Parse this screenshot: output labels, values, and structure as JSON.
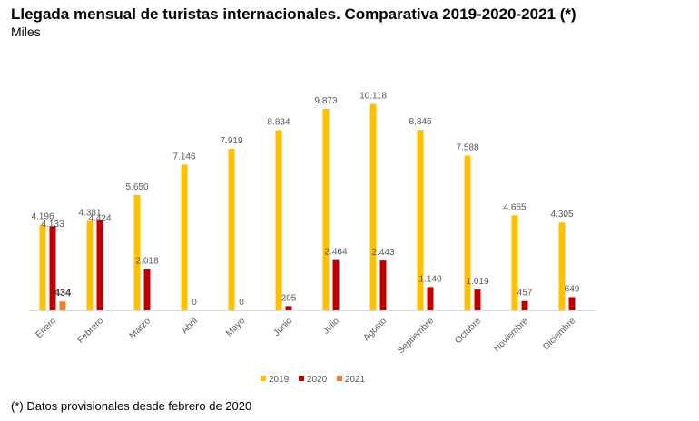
{
  "title": "Llegada mensual de turistas internacionales. Comparativa 2019-2020-2021 (*)",
  "subtitle": "Miles",
  "footnote": "(*) Datos provisionales desde febrero de 2020",
  "chart_data": {
    "type": "bar",
    "title": "Llegada mensual de turistas internacionales. Comparativa 2019-2020-2021 (*)",
    "subtitle": "Miles",
    "xlabel": "",
    "ylabel": "",
    "categories": [
      "Enero",
      "Febrero",
      "Marzo",
      "Abril",
      "Mayo",
      "Junio",
      "Julio",
      "Agosto",
      "Septiembre",
      "Octubre",
      "Noviembre",
      "Diciembre"
    ],
    "series": [
      {
        "name": "2019",
        "color": "#FFC000",
        "values": [
          4196,
          4381,
          5650,
          7146,
          7919,
          8834,
          9873,
          10118,
          8845,
          7588,
          4655,
          4305
        ],
        "labels": [
          "4.196",
          "4.381",
          "5.650",
          "7.146",
          "7.919",
          "8.834",
          "9.873",
          "10.118",
          "8.845",
          "7.588",
          "4.655",
          "4.305"
        ]
      },
      {
        "name": "2020",
        "color": "#C00000",
        "values": [
          4133,
          4424,
          2018,
          0,
          0,
          205,
          2464,
          2443,
          1140,
          1019,
          457,
          649
        ],
        "labels": [
          "4.133",
          "4.424",
          "2.018",
          "0",
          "0",
          "205",
          "2.464",
          "2.443",
          "1.140",
          "1.019",
          "457",
          "649"
        ]
      },
      {
        "name": "2021",
        "color": "#ED7D31",
        "values": [
          434,
          null,
          null,
          null,
          null,
          null,
          null,
          null,
          null,
          null,
          null,
          null
        ],
        "labels": [
          "434",
          "",
          "",
          "",
          "",
          "",
          "",
          "",
          "",
          "",
          "",
          ""
        ]
      }
    ],
    "grid": false,
    "legend": "bottom",
    "ylim": [
      0,
      10500
    ]
  }
}
